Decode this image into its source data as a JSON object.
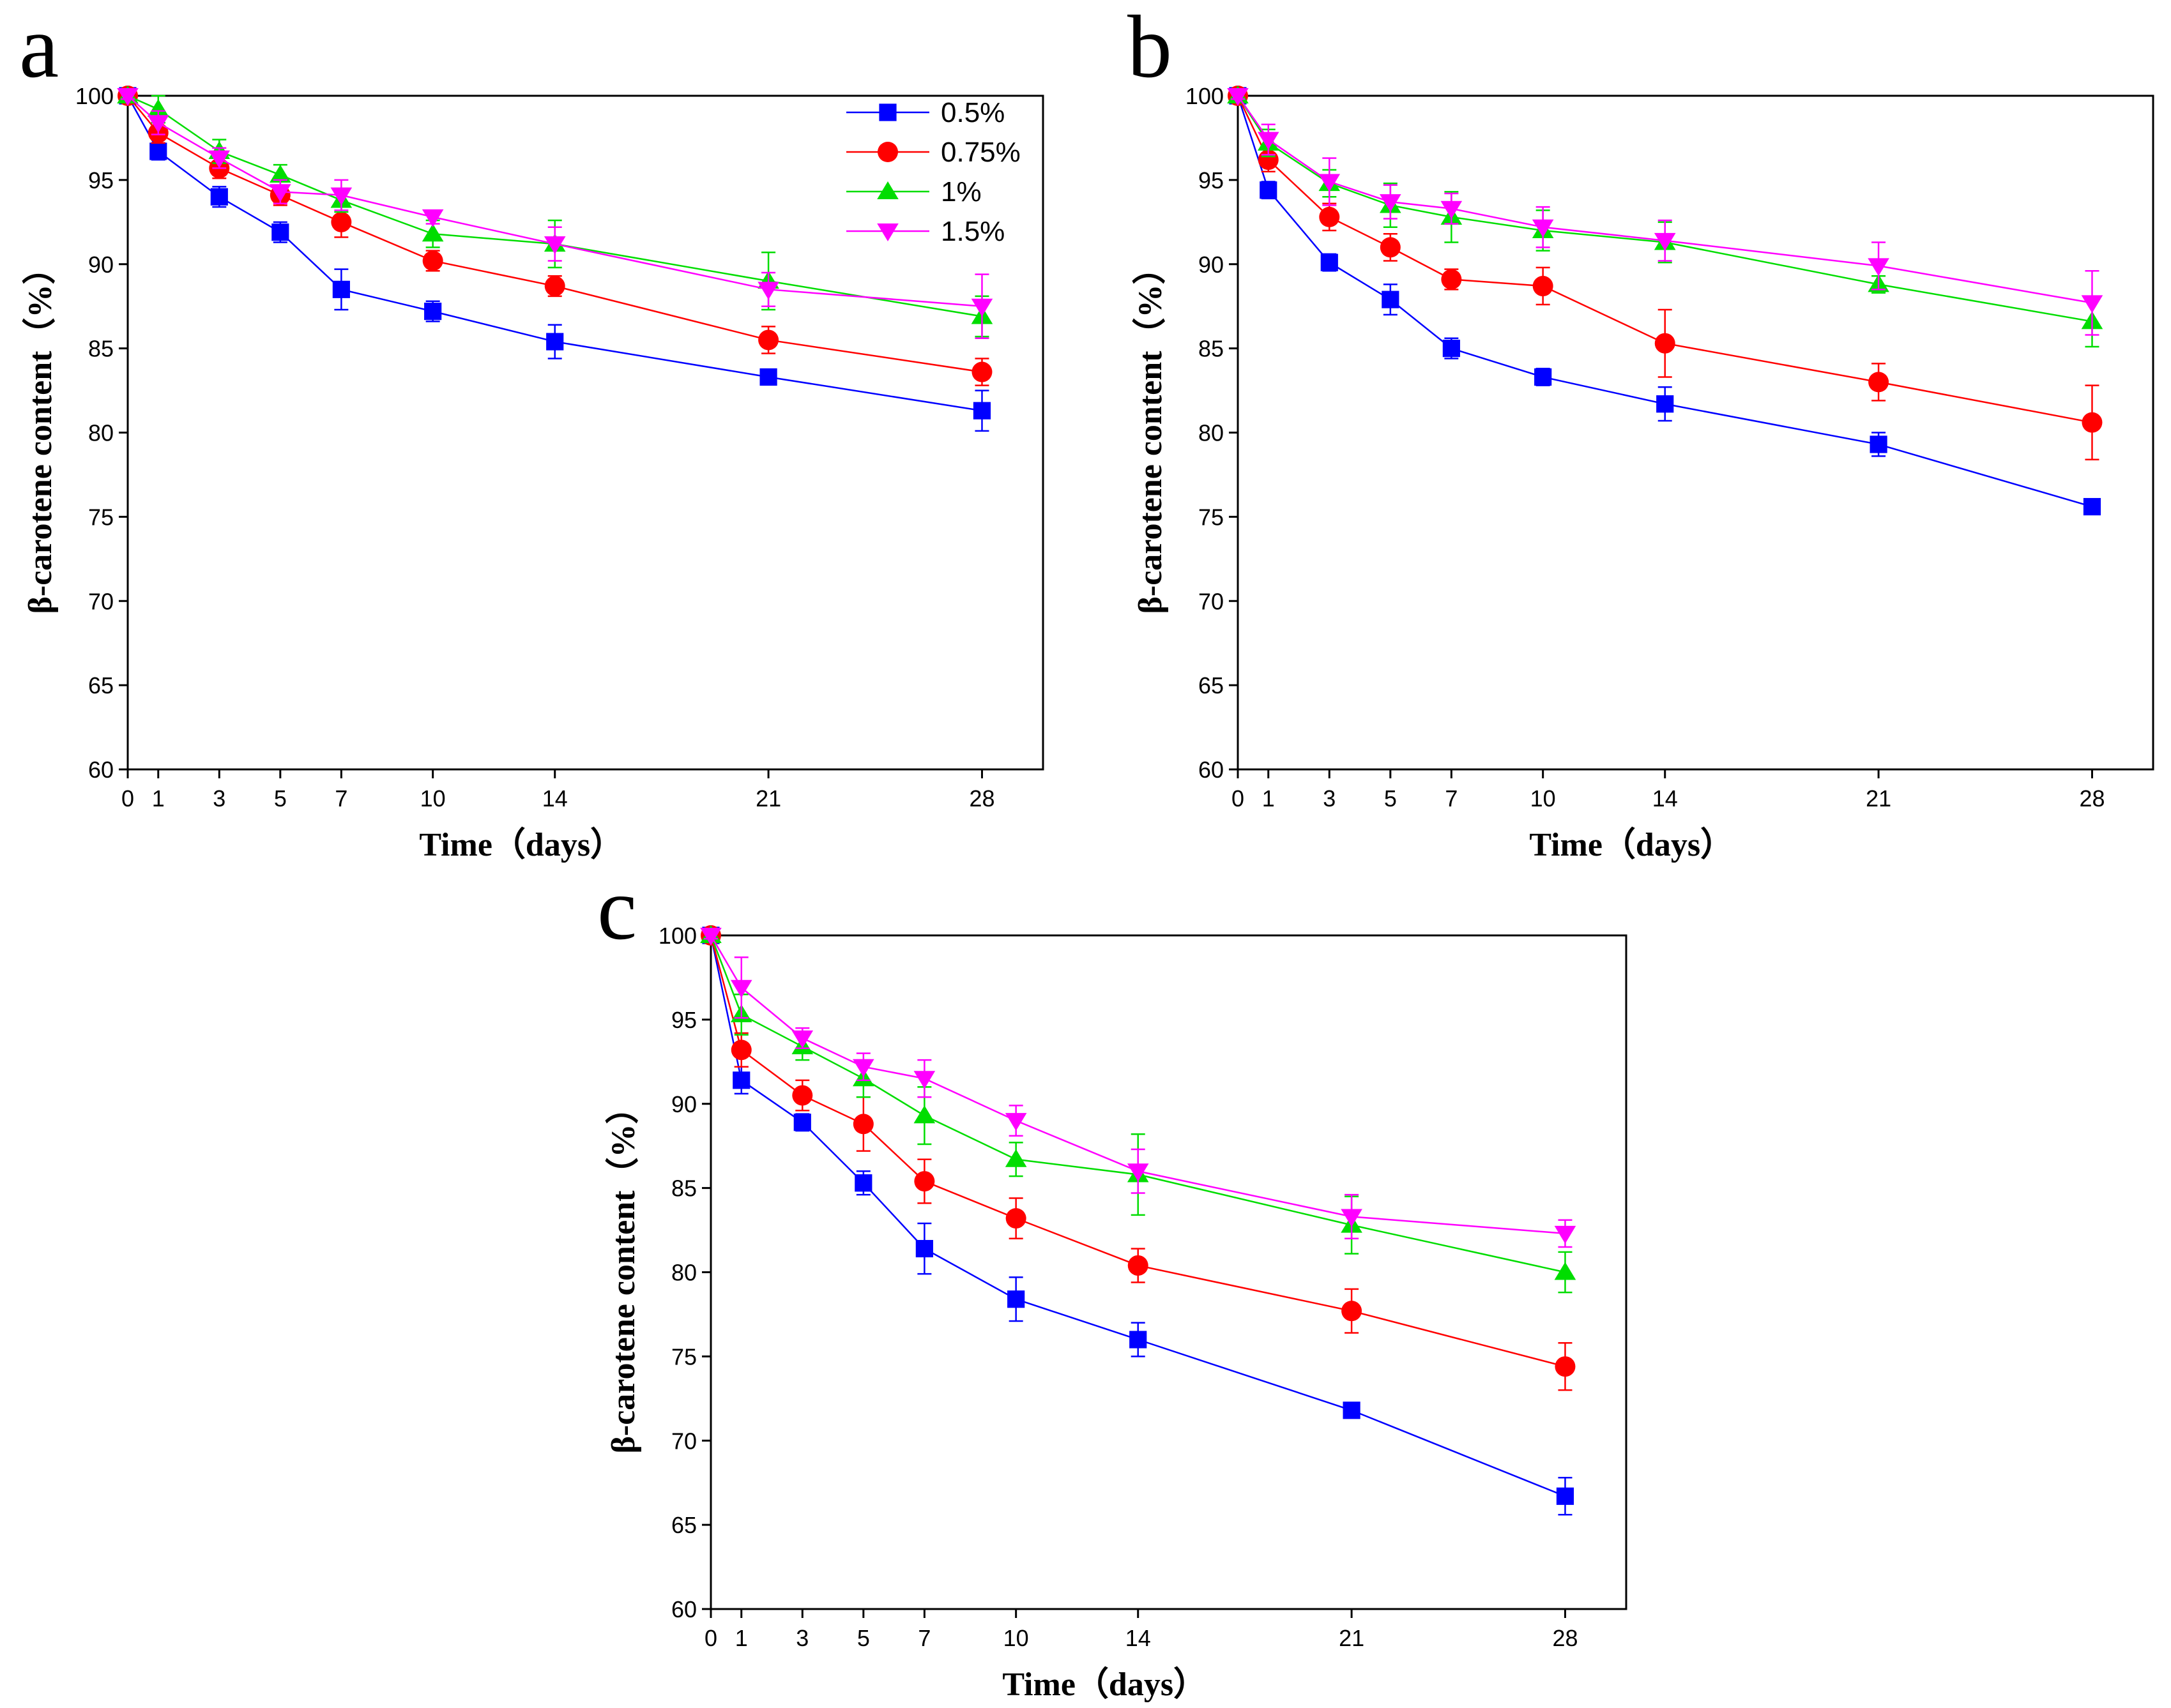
{
  "chart_data": [
    {
      "type": "line",
      "panel": "a",
      "xlabel": "Time（days）",
      "ylabel": "β-carotene content（%）",
      "x": [
        0,
        1,
        3,
        5,
        7,
        10,
        14,
        21,
        28
      ],
      "xticks": [
        0,
        1,
        3,
        5,
        7,
        10,
        14,
        21,
        28
      ],
      "yticks": [
        60,
        65,
        70,
        75,
        80,
        85,
        90,
        95,
        100
      ],
      "xlim": [
        0,
        30
      ],
      "ylim": [
        60,
        100
      ],
      "legend": "top-right",
      "series": [
        {
          "name": "0.5%",
          "color": "#0000ff",
          "marker": "square",
          "values": [
            100,
            96.7,
            94.0,
            91.9,
            88.5,
            87.2,
            85.4,
            83.3,
            81.3
          ],
          "errors": [
            0.2,
            0.5,
            0.6,
            0.6,
            1.2,
            0.6,
            1.0,
            0.3,
            1.2
          ]
        },
        {
          "name": "0.75%",
          "color": "#ff0000",
          "marker": "circle",
          "values": [
            100,
            97.8,
            95.7,
            94.1,
            92.5,
            90.2,
            88.7,
            85.5,
            83.6
          ],
          "errors": [
            0.2,
            0.6,
            0.6,
            0.6,
            0.9,
            0.6,
            0.6,
            0.8,
            0.8
          ]
        },
        {
          "name": "1%",
          "color": "#00dd00",
          "marker": "triangle-up",
          "values": [
            100,
            99.2,
            96.7,
            95.3,
            93.8,
            91.8,
            91.2,
            89.0,
            86.9
          ],
          "errors": [
            0.2,
            0.8,
            0.7,
            0.6,
            0.7,
            0.8,
            1.4,
            1.7,
            1.2
          ]
        },
        {
          "name": "1.5%",
          "color": "#ff00ff",
          "marker": "triangle-down",
          "values": [
            100,
            98.4,
            96.3,
            94.3,
            94.1,
            92.8,
            91.2,
            88.5,
            87.5
          ],
          "errors": [
            0.2,
            0.7,
            0.6,
            0.7,
            0.9,
            0.4,
            1.0,
            1.0,
            1.9
          ]
        }
      ]
    },
    {
      "type": "line",
      "panel": "b",
      "xlabel": "Time（days）",
      "ylabel": "β-carotene content（%）",
      "x": [
        0,
        1,
        3,
        5,
        7,
        10,
        14,
        21,
        28
      ],
      "xticks": [
        0,
        1,
        3,
        5,
        7,
        10,
        14,
        21,
        28
      ],
      "yticks": [
        60,
        65,
        70,
        75,
        80,
        85,
        90,
        95,
        100
      ],
      "xlim": [
        0,
        30
      ],
      "ylim": [
        60,
        100
      ],
      "series": [
        {
          "name": "0.5%",
          "color": "#0000ff",
          "marker": "square",
          "values": [
            100,
            94.4,
            90.1,
            87.9,
            85.0,
            83.3,
            81.7,
            79.3,
            75.6
          ],
          "errors": [
            0.2,
            0.5,
            0.5,
            0.9,
            0.6,
            0.5,
            1.0,
            0.7,
            0.4
          ]
        },
        {
          "name": "0.75%",
          "color": "#ff0000",
          "marker": "circle",
          "values": [
            100,
            96.2,
            92.8,
            91.0,
            89.1,
            88.7,
            85.3,
            83.0,
            80.6
          ],
          "errors": [
            0.2,
            0.7,
            0.8,
            0.8,
            0.6,
            1.1,
            2.0,
            1.1,
            2.2
          ]
        },
        {
          "name": "1%",
          "color": "#00dd00",
          "marker": "triangle-up",
          "values": [
            100,
            97.2,
            94.8,
            93.5,
            92.8,
            92.0,
            91.3,
            88.8,
            86.6
          ],
          "errors": [
            0.2,
            0.8,
            0.8,
            1.3,
            1.5,
            1.2,
            1.2,
            0.5,
            1.5
          ]
        },
        {
          "name": "1.5%",
          "color": "#ff00ff",
          "marker": "triangle-down",
          "values": [
            100,
            97.4,
            94.9,
            93.7,
            93.3,
            92.2,
            91.4,
            89.9,
            87.7
          ],
          "errors": [
            0.2,
            0.9,
            1.4,
            1.0,
            0.9,
            1.2,
            1.2,
            1.4,
            1.9
          ]
        }
      ]
    },
    {
      "type": "line",
      "panel": "c",
      "xlabel": "Time（days）",
      "ylabel": "β-carotene content（%）",
      "x": [
        0,
        1,
        3,
        5,
        7,
        10,
        14,
        21,
        28
      ],
      "xticks": [
        0,
        1,
        3,
        5,
        7,
        10,
        14,
        21,
        28
      ],
      "yticks": [
        60,
        65,
        70,
        75,
        80,
        85,
        90,
        95,
        100
      ],
      "xlim": [
        0,
        30
      ],
      "ylim": [
        60,
        100
      ],
      "series": [
        {
          "name": "0.5%",
          "color": "#0000ff",
          "marker": "square",
          "values": [
            100,
            91.4,
            88.9,
            85.3,
            81.4,
            78.4,
            76.0,
            71.8,
            66.7
          ],
          "errors": [
            0.2,
            0.8,
            0.5,
            0.7,
            1.5,
            1.3,
            1.0,
            0.4,
            1.1
          ]
        },
        {
          "name": "0.75%",
          "color": "#ff0000",
          "marker": "circle",
          "values": [
            100,
            93.2,
            90.5,
            88.8,
            85.4,
            83.2,
            80.4,
            77.7,
            74.4
          ],
          "errors": [
            0.2,
            1.0,
            0.9,
            1.6,
            1.3,
            1.2,
            1.0,
            1.3,
            1.4
          ]
        },
        {
          "name": "1%",
          "color": "#00dd00",
          "marker": "triangle-up",
          "values": [
            100,
            95.3,
            93.4,
            91.5,
            89.3,
            86.7,
            85.8,
            82.8,
            80.0
          ],
          "errors": [
            0.2,
            1.2,
            0.8,
            1.1,
            1.7,
            1.0,
            2.4,
            1.7,
            1.2
          ]
        },
        {
          "name": "1.5%",
          "color": "#ff00ff",
          "marker": "triangle-down",
          "values": [
            100,
            96.9,
            93.9,
            92.2,
            91.5,
            89.0,
            86.0,
            83.3,
            82.3
          ],
          "errors": [
            0.2,
            1.8,
            0.6,
            0.8,
            1.1,
            0.9,
            1.3,
            1.3,
            0.8
          ]
        }
      ]
    }
  ]
}
